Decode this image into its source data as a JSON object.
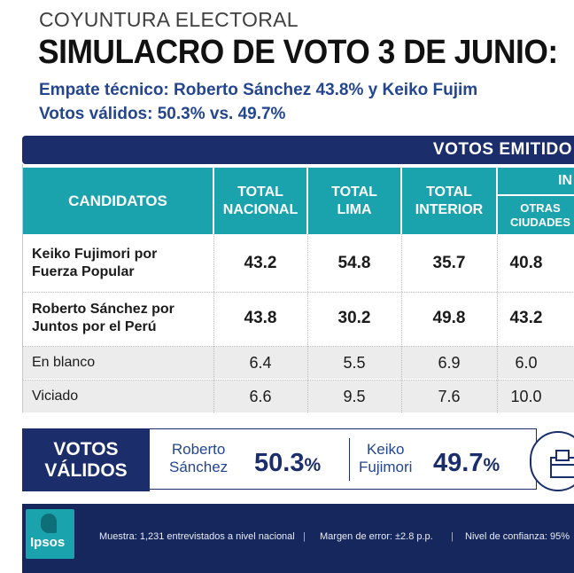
{
  "header": {
    "kicker": "COYUNTURA ELECTORAL",
    "title": "SIMULACRO DE VOTO 3 DE JUNIO:",
    "subtitle_1": "Empate técnico: Roberto Sánchez 43.8% y Keiko Fujim",
    "subtitle_2": "Votos válidos: 50.3% vs. 49.7%"
  },
  "table": {
    "band_label": "VOTOS EMITIDO",
    "candidates_header": "CANDIDATOS",
    "columns": [
      {
        "line1": "TOTAL",
        "line2": "NACIONAL"
      },
      {
        "line1": "TOTAL",
        "line2": "LIMA"
      },
      {
        "line1": "TOTAL",
        "line2": "INTERIOR"
      }
    ],
    "interior_group_label": "IN",
    "sub_column": {
      "line1": "OTRAS",
      "line2": "CIUDADES"
    }
  },
  "chart_data": {
    "type": "table",
    "columns": [
      "TOTAL NACIONAL",
      "TOTAL LIMA",
      "TOTAL INTERIOR",
      "OTRAS CIUDADES"
    ],
    "rows": [
      {
        "line1": "Keiko Fujimori por",
        "line2": "Fuerza Popular",
        "values": [
          "43.2",
          "54.8",
          "35.7",
          "40.8"
        ]
      },
      {
        "line1": "Roberto Sánchez por",
        "line2": "Juntos por el Perú",
        "values": [
          "43.8",
          "30.2",
          "49.8",
          "43.2"
        ]
      },
      {
        "line1": "En blanco",
        "line2": "",
        "values": [
          "6.4",
          "5.5",
          "6.9",
          "6.0"
        ]
      },
      {
        "line1": "Viciado",
        "line2": "",
        "values": [
          "6.6",
          "9.5",
          "7.6",
          "10.0"
        ]
      }
    ],
    "valid_votes": [
      {
        "line1": "Roberto",
        "line2": "Sánchez",
        "value": "50.3",
        "unit": "%"
      },
      {
        "line1": "Keiko",
        "line2": "Fujimori",
        "value": "49.7",
        "unit": "%"
      }
    ]
  },
  "valid_votes": {
    "label_line1": "VOTOS",
    "label_line2": "VÁLIDOS"
  },
  "footer": {
    "brand": "Ipsos",
    "sample": "Muestra: 1,231 entrevistados a nivel nacional",
    "sep": "|",
    "margin": "Margen de error: ±2.8 p.p.",
    "confidence": "Nivel de confianza: 95%"
  },
  "colors": {
    "navy": "#1b2e6b",
    "teal": "#1ba3ad",
    "subtitle_blue": "#24468f"
  }
}
